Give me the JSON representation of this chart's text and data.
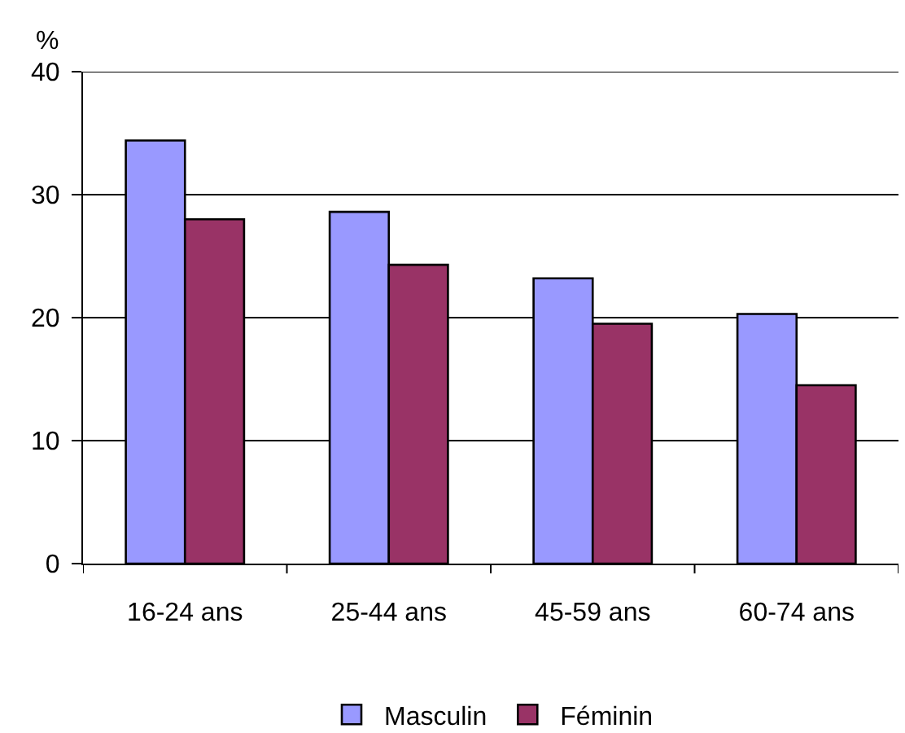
{
  "chart_data": {
    "type": "bar",
    "ylabel": "%",
    "categories": [
      "16-24 ans",
      "25-44 ans",
      "45-59 ans",
      "60-74 ans"
    ],
    "series": [
      {
        "name": "Masculin",
        "color": "#9999ff",
        "values": [
          34.4,
          28.6,
          23.2,
          20.3
        ]
      },
      {
        "name": "Féminin",
        "color": "#993366",
        "values": [
          28.0,
          24.3,
          19.5,
          14.5
        ]
      }
    ],
    "ylim": [
      0,
      40
    ],
    "yticks": [
      0,
      10,
      20,
      30,
      40
    ],
    "grid": "y",
    "legend": "bottom"
  }
}
